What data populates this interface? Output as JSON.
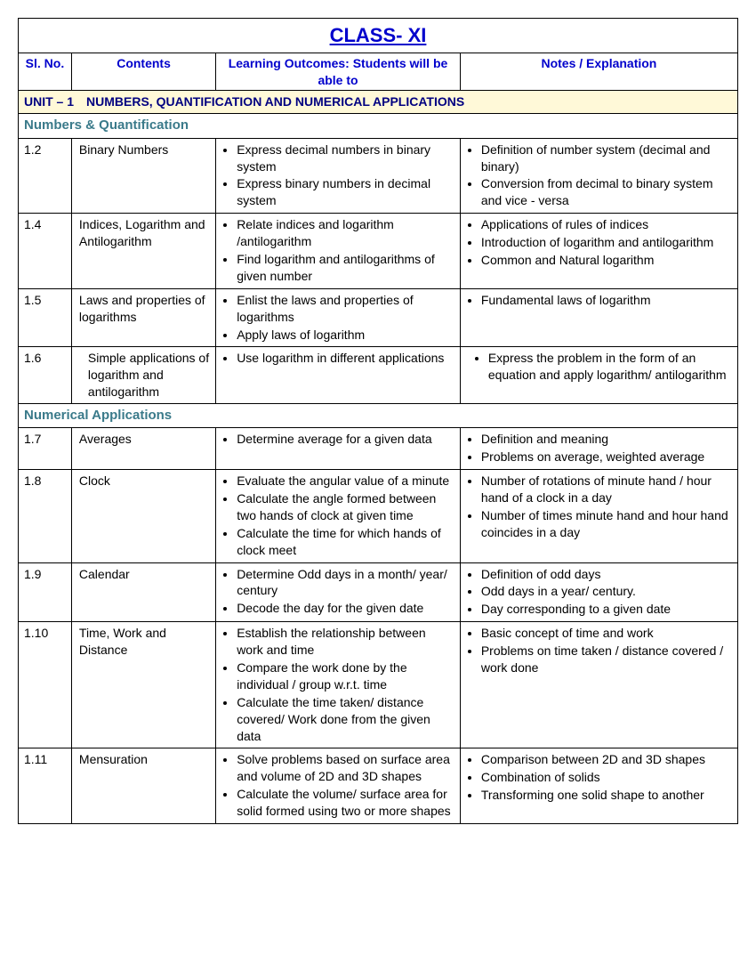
{
  "title": "CLASS- XI",
  "headers": {
    "sl": "Sl. No.",
    "contents": "Contents",
    "outcomes": "Learning Outcomes: Students will be able to",
    "notes": "Notes / Explanation"
  },
  "unit": "UNIT – 1 NUMBERS, QUANTIFICATION AND NUMERICAL APPLICATIONS",
  "section1": "Numbers & Quantification",
  "section2": "Numerical Applications",
  "rows": [
    {
      "sl": "1.2",
      "contents": "Binary Numbers",
      "outcomes": [
        "Express decimal numbers in binary system",
        "Express binary numbers in decimal system"
      ],
      "notes": [
        "Definition of number system (decimal and binary)",
        "Conversion from decimal to binary system and vice - versa"
      ]
    },
    {
      "sl": "1.4",
      "contents": "Indices, Logarithm and Antilogarithm",
      "outcomes": [
        "Relate  indices and logarithm /antilogarithm",
        "Find  logarithm and antilogarithms of given number"
      ],
      "notes": [
        "Applications of rules of indices",
        "Introduction of logarithm and antilogarithm",
        "Common and Natural logarithm"
      ]
    },
    {
      "sl": "1.5",
      "contents": "Laws and properties of logarithms",
      "outcomes": [
        "Enlist the laws and properties of logarithms",
        "Apply laws of logarithm"
      ],
      "notes": [
        "Fundamental laws of logarithm"
      ]
    },
    {
      "sl": "1.6",
      "contents": "Simple applications of logarithm and antilogarithm",
      "outcomes": [
        "Use logarithm in different applications"
      ],
      "notes": [
        "Express the problem in the form of an equation and apply logarithm/ antilogarithm"
      ],
      "notesIndent": true
    },
    {
      "sl": "1.7",
      "contents": "Averages",
      "outcomes": [
        "Determine average for a given data"
      ],
      "notes": [
        "Definition and meaning",
        "Problems on average, weighted average"
      ]
    },
    {
      "sl": "1.8",
      "contents": "Clock",
      "outcomes": [
        "Evaluate the angular value of a minute",
        "Calculate the angle formed between two hands of clock at given time",
        "Calculate the time for which hands of clock meet"
      ],
      "notes": [
        "Number of rotations of minute hand / hour hand of a clock in a day",
        "Number of times minute hand and hour hand coincides in a day"
      ]
    },
    {
      "sl": "1.9",
      "contents": "Calendar",
      "outcomes": [
        "Determine Odd days in a month/ year/ century",
        "Decode the day for the given date"
      ],
      "notes": [
        "Definition of odd days",
        "Odd days in a year/ century.",
        "Day corresponding to a given date"
      ]
    },
    {
      "sl": "1.10",
      "contents": "Time, Work and Distance",
      "outcomes": [
        "Establish the relationship between work and time",
        "Compare the work done by the individual / group w.r.t. time",
        "Calculate the time taken/ distance covered/ Work done from the given data"
      ],
      "notes": [
        "Basic concept of time and work",
        "Problems on time taken / distance covered / work done"
      ]
    },
    {
      "sl": "1.11",
      "contents": "Mensuration",
      "outcomes": [
        "Solve problems based on surface area and volume of 2D and 3D shapes",
        "Calculate the volume/ surface area for solid formed using two or more shapes"
      ],
      "notes": [
        "Comparison between 2D and 3D shapes",
        "Combination of solids",
        "Transforming one solid shape to another"
      ]
    }
  ]
}
